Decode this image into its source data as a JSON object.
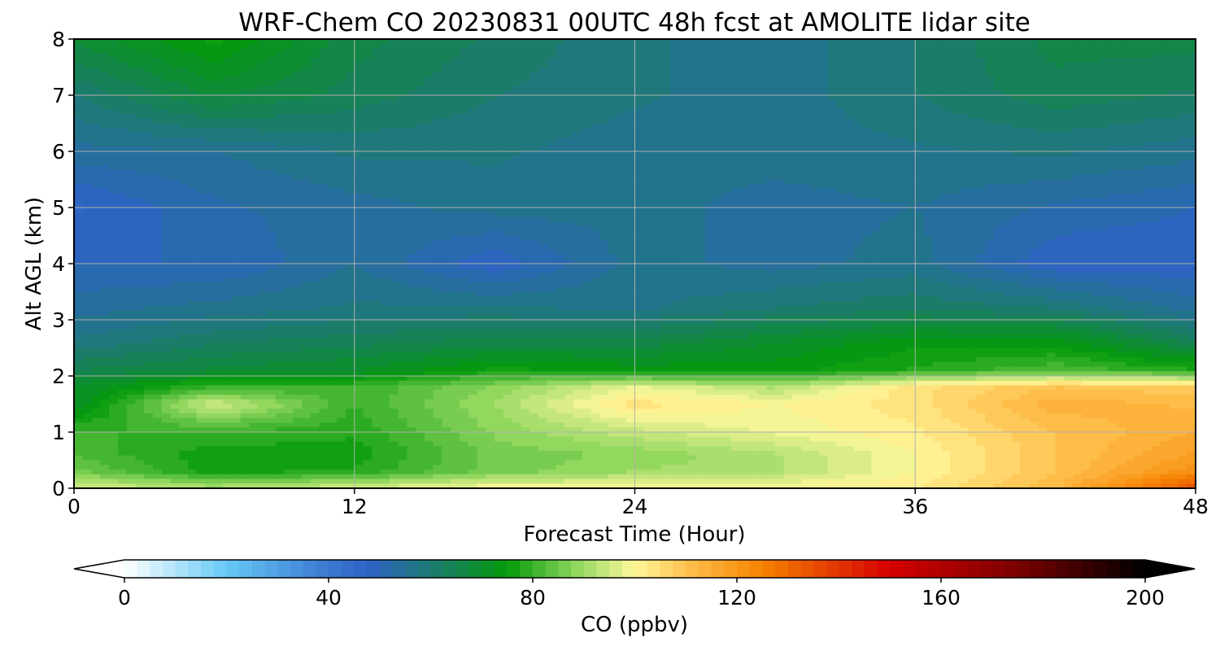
{
  "chart_data": {
    "type": "heatmap",
    "title": "WRF-Chem CO  20230831 00UTC 48h fcst at AMOLITE lidar site",
    "xlabel": "Forecast Time (Hour)",
    "ylabel": "Alt AGL (km)",
    "xlim": [
      0,
      48
    ],
    "ylim": [
      0,
      8
    ],
    "xticks": [
      "0",
      "12",
      "24",
      "36",
      "48"
    ],
    "yticks": [
      "0",
      "1",
      "2",
      "3",
      "4",
      "5",
      "6",
      "7",
      "8"
    ],
    "grid": true,
    "colorbar": {
      "label": "CO  (ppbv)",
      "range": [
        0,
        200
      ],
      "ticks": [
        "0",
        "40",
        "80",
        "120",
        "160",
        "200"
      ],
      "extend": "both",
      "stops": [
        {
          "v": 0,
          "color": "#ffffff"
        },
        {
          "v": 20,
          "color": "#66c8f5"
        },
        {
          "v": 40,
          "color": "#3a78d0"
        },
        {
          "v": 48,
          "color": "#2e63c4"
        },
        {
          "v": 60,
          "color": "#1d7a72"
        },
        {
          "v": 75,
          "color": "#049a0a"
        },
        {
          "v": 90,
          "color": "#9fdc66"
        },
        {
          "v": 100,
          "color": "#fff79a"
        },
        {
          "v": 110,
          "color": "#ffc250"
        },
        {
          "v": 125,
          "color": "#f58200"
        },
        {
          "v": 150,
          "color": "#d50000"
        },
        {
          "v": 175,
          "color": "#7a0000"
        },
        {
          "v": 200,
          "color": "#000000"
        }
      ]
    },
    "x": [
      0,
      6,
      12,
      18,
      24,
      30,
      36,
      42,
      48
    ],
    "y": [
      0,
      0.3,
      0.6,
      1.0,
      1.5,
      1.8,
      2.1,
      2.6,
      3.2,
      4.0,
      5.0,
      6.0,
      7.0,
      8.0
    ],
    "z": [
      [
        96,
        92,
        96,
        100,
        100,
        100,
        102,
        112,
        135
      ],
      [
        86,
        76,
        78,
        86,
        90,
        92,
        100,
        110,
        122
      ],
      [
        82,
        76,
        76,
        86,
        88,
        92,
        100,
        110,
        118
      ],
      [
        80,
        80,
        78,
        88,
        94,
        98,
        102,
        110,
        115
      ],
      [
        70,
        96,
        80,
        90,
        104,
        100,
        104,
        114,
        112
      ],
      [
        70,
        80,
        80,
        88,
        98,
        92,
        104,
        110,
        108
      ],
      [
        65,
        68,
        70,
        76,
        74,
        74,
        78,
        82,
        78
      ],
      [
        58,
        62,
        64,
        66,
        66,
        70,
        74,
        74,
        64
      ],
      [
        54,
        56,
        58,
        58,
        57,
        60,
        62,
        60,
        54
      ],
      [
        50,
        50,
        55,
        48,
        56,
        54,
        56,
        48,
        48
      ],
      [
        47,
        52,
        54,
        56,
        56,
        54,
        55,
        52,
        50
      ],
      [
        54,
        55,
        58,
        58,
        56,
        56,
        57,
        58,
        56
      ],
      [
        60,
        68,
        64,
        60,
        58,
        56,
        60,
        64,
        62
      ],
      [
        68,
        76,
        66,
        62,
        58,
        56,
        60,
        66,
        66
      ]
    ]
  }
}
